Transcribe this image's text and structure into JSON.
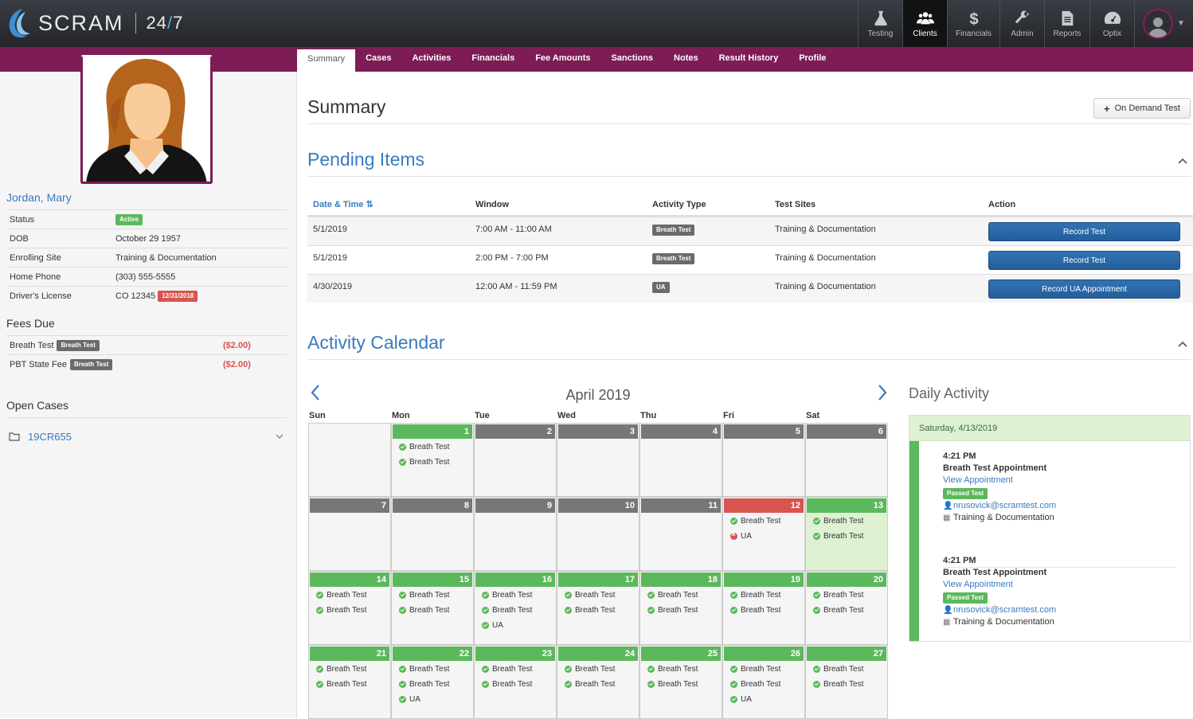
{
  "header": {
    "brand": "SCRAM",
    "hours": "24",
    "hours_slash": "/",
    "hours_end": "7",
    "nav": [
      {
        "label": "Testing",
        "icon": "flask-icon"
      },
      {
        "label": "Clients",
        "icon": "users-icon",
        "active": true
      },
      {
        "label": "Financials",
        "icon": "dollar-icon"
      },
      {
        "label": "Admin",
        "icon": "wrench-icon"
      },
      {
        "label": "Reports",
        "icon": "document-icon"
      },
      {
        "label": "Optix",
        "icon": "dashboard-icon"
      }
    ]
  },
  "tabs": [
    "Summary",
    "Cases",
    "Activities",
    "Financials",
    "Fee Amounts",
    "Sanctions",
    "Notes",
    "Result History",
    "Profile"
  ],
  "client": {
    "name": "Jordan, Mary",
    "fields": [
      {
        "label": "Status",
        "value": "",
        "badge": "Active"
      },
      {
        "label": "DOB",
        "value": "October 29 1957"
      },
      {
        "label": "Enrolling Site",
        "value": "Training & Documentation"
      },
      {
        "label": "Home Phone",
        "value": "(303) 555-5555"
      },
      {
        "label": "Driver's License",
        "value": "CO 12345",
        "badge": "12/31/2018"
      }
    ]
  },
  "fees": {
    "title": "Fees Due",
    "items": [
      {
        "label": "Breath Test",
        "badge": "Breath Test",
        "amount": "($2.00)"
      },
      {
        "label": "PBT State Fee",
        "badge": "Breath Test",
        "amount": "($2.00)"
      }
    ]
  },
  "cases": {
    "title": "Open Cases",
    "items": [
      {
        "label": "19CR655"
      }
    ]
  },
  "summary": {
    "title": "Summary",
    "on_demand": "On Demand Test"
  },
  "pending": {
    "title": "Pending Items",
    "columns": [
      "Date & Time",
      "Window",
      "Activity Type",
      "Test Sites",
      "Action"
    ],
    "rows": [
      {
        "date": "5/1/2019",
        "window": "7:00 AM - 11:00 AM",
        "type": "Breath Test",
        "site": "Training & Documentation",
        "action": "Record Test"
      },
      {
        "date": "5/1/2019",
        "window": "2:00 PM - 7:00 PM",
        "type": "Breath Test",
        "site": "Training & Documentation",
        "action": "Record Test"
      },
      {
        "date": "4/30/2019",
        "window": "12:00 AM - 11:59 PM",
        "type": "UA",
        "site": "Training & Documentation",
        "action": "Record UA Appointment"
      }
    ]
  },
  "calendar": {
    "title": "Activity Calendar",
    "month": "April 2019",
    "dows": [
      "Sun",
      "Mon",
      "Tue",
      "Wed",
      "Thu",
      "Fri",
      "Sat"
    ],
    "weeks": [
      [
        {
          "day": "",
          "status": "empty",
          "events": []
        },
        {
          "day": "1",
          "status": "g",
          "events": [
            [
              "ok",
              "Breath Test"
            ],
            [
              "ok",
              "Breath Test"
            ]
          ]
        },
        {
          "day": "2",
          "status": "d",
          "events": []
        },
        {
          "day": "3",
          "status": "d",
          "events": []
        },
        {
          "day": "4",
          "status": "d",
          "events": []
        },
        {
          "day": "5",
          "status": "d",
          "events": []
        },
        {
          "day": "6",
          "status": "d",
          "events": []
        }
      ],
      [
        {
          "day": "7",
          "status": "d",
          "events": []
        },
        {
          "day": "8",
          "status": "d",
          "events": []
        },
        {
          "day": "9",
          "status": "d",
          "events": []
        },
        {
          "day": "10",
          "status": "d",
          "events": []
        },
        {
          "day": "11",
          "status": "d",
          "events": []
        },
        {
          "day": "12",
          "status": "r",
          "events": [
            [
              "ok",
              "Breath Test"
            ],
            [
              "bad",
              "UA"
            ]
          ]
        },
        {
          "day": "13",
          "status": "g",
          "selected": true,
          "events": [
            [
              "ok",
              "Breath Test"
            ],
            [
              "ok",
              "Breath Test"
            ]
          ]
        }
      ],
      [
        {
          "day": "14",
          "status": "g",
          "events": [
            [
              "ok",
              "Breath Test"
            ],
            [
              "ok",
              "Breath Test"
            ]
          ]
        },
        {
          "day": "15",
          "status": "g",
          "events": [
            [
              "ok",
              "Breath Test"
            ],
            [
              "ok",
              "Breath Test"
            ]
          ]
        },
        {
          "day": "16",
          "status": "g",
          "events": [
            [
              "ok",
              "Breath Test"
            ],
            [
              "ok",
              "Breath Test"
            ],
            [
              "ok",
              "UA"
            ]
          ]
        },
        {
          "day": "17",
          "status": "g",
          "events": [
            [
              "ok",
              "Breath Test"
            ],
            [
              "ok",
              "Breath Test"
            ]
          ]
        },
        {
          "day": "18",
          "status": "g",
          "events": [
            [
              "ok",
              "Breath Test"
            ],
            [
              "ok",
              "Breath Test"
            ]
          ]
        },
        {
          "day": "19",
          "status": "g",
          "events": [
            [
              "ok",
              "Breath Test"
            ],
            [
              "ok",
              "Breath Test"
            ]
          ]
        },
        {
          "day": "20",
          "status": "g",
          "events": [
            [
              "ok",
              "Breath Test"
            ],
            [
              "ok",
              "Breath Test"
            ]
          ]
        }
      ],
      [
        {
          "day": "21",
          "status": "g",
          "events": [
            [
              "ok",
              "Breath Test"
            ],
            [
              "ok",
              "Breath Test"
            ]
          ]
        },
        {
          "day": "22",
          "status": "g",
          "events": [
            [
              "ok",
              "Breath Test"
            ],
            [
              "ok",
              "Breath Test"
            ],
            [
              "ok",
              "UA"
            ]
          ]
        },
        {
          "day": "23",
          "status": "g",
          "events": [
            [
              "ok",
              "Breath Test"
            ],
            [
              "ok",
              "Breath Test"
            ]
          ]
        },
        {
          "day": "24",
          "status": "g",
          "events": [
            [
              "ok",
              "Breath Test"
            ],
            [
              "ok",
              "Breath Test"
            ]
          ]
        },
        {
          "day": "25",
          "status": "g",
          "events": [
            [
              "ok",
              "Breath Test"
            ],
            [
              "ok",
              "Breath Test"
            ]
          ]
        },
        {
          "day": "26",
          "status": "g",
          "events": [
            [
              "ok",
              "Breath Test"
            ],
            [
              "ok",
              "Breath Test"
            ],
            [
              "ok",
              "UA"
            ]
          ]
        },
        {
          "day": "27",
          "status": "g",
          "events": [
            [
              "ok",
              "Breath Test"
            ],
            [
              "ok",
              "Breath Test"
            ]
          ]
        }
      ]
    ]
  },
  "daily": {
    "title": "Daily Activity",
    "date": "Saturday, 4/13/2019",
    "appointments": [
      {
        "time": "4:21 PM",
        "title": "Breath Test Appointment",
        "link": "View Appointment",
        "result": "Passed Test",
        "user": "nrusovick@scramtest.com",
        "site": "Training & Documentation"
      },
      {
        "time": "4:21 PM",
        "title": "Breath Test Appointment",
        "link": "View Appointment",
        "result": "Passed Test",
        "user": "nrusovick@scramtest.com",
        "site": "Training & Documentation"
      }
    ]
  },
  "colors": {
    "brand_magenta": "#7d1c55",
    "link_blue": "#3a7abf",
    "success": "#5cb85c",
    "danger": "#d9534f"
  }
}
